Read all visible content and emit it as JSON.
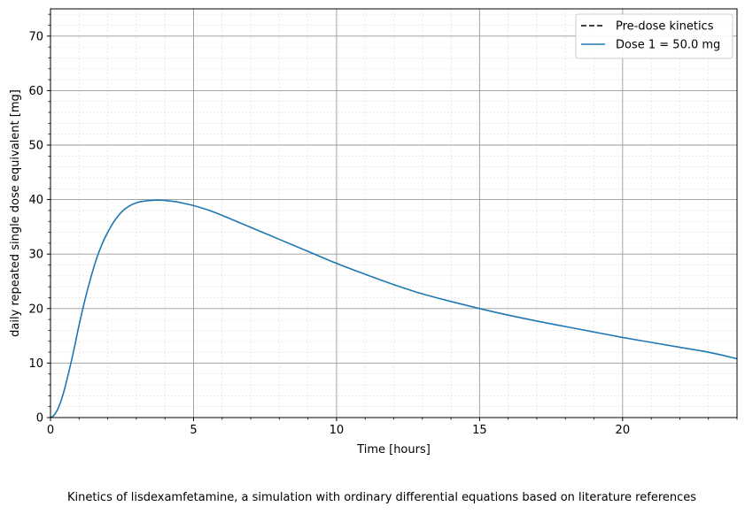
{
  "caption": "Kinetics of lisdexamfetamine, a simulation with ordinary differential equations based on literature references",
  "chart_data": {
    "type": "line",
    "title": "",
    "xlabel": "Time [hours]",
    "ylabel": "daily repeated single dose equivalent [mg]",
    "xlim": [
      0,
      24
    ],
    "ylim": [
      0,
      75
    ],
    "xticks": [
      0,
      5,
      10,
      15,
      20
    ],
    "yticks": [
      0,
      10,
      20,
      30,
      40,
      50,
      60,
      70
    ],
    "grid": "major and minor",
    "legend_position": "top-right",
    "series": [
      {
        "name": "Pre-dose kinetics",
        "style": "dashed",
        "color": "#000000",
        "x": [],
        "y": []
      },
      {
        "name": "Dose 1 = 50.0 mg",
        "style": "solid",
        "color": "#1f77b4",
        "x": [
          0,
          0.1,
          0.2,
          0.3,
          0.4,
          0.5,
          0.6,
          0.7,
          0.8,
          0.9,
          1.0,
          1.2,
          1.4,
          1.6,
          1.8,
          2.0,
          2.25,
          2.5,
          2.75,
          3.0,
          3.25,
          3.5,
          3.75,
          4.0,
          4.25,
          4.5,
          4.75,
          5.0,
          5.5,
          6.0,
          6.5,
          7.0,
          7.5,
          8.0,
          9.0,
          10.0,
          11.0,
          12.0,
          13.0,
          14.0,
          15.0,
          16.0,
          17.0,
          18.0,
          19.0,
          20.0,
          21.0,
          22.0,
          23.0,
          24.0
        ],
        "y": [
          0,
          0.3,
          1.0,
          2.1,
          3.6,
          5.4,
          7.5,
          9.7,
          12.0,
          14.5,
          17.0,
          21.5,
          25.5,
          29.0,
          31.8,
          34.0,
          36.2,
          37.8,
          38.8,
          39.4,
          39.7,
          39.85,
          39.9,
          39.85,
          39.7,
          39.5,
          39.2,
          38.9,
          38.1,
          37.1,
          36.0,
          34.9,
          33.8,
          32.7,
          30.5,
          28.3,
          26.3,
          24.4,
          22.7,
          21.3,
          20.0,
          18.8,
          17.7,
          16.7,
          15.7,
          14.7,
          13.8,
          12.9,
          12.0,
          10.8
        ]
      }
    ]
  }
}
